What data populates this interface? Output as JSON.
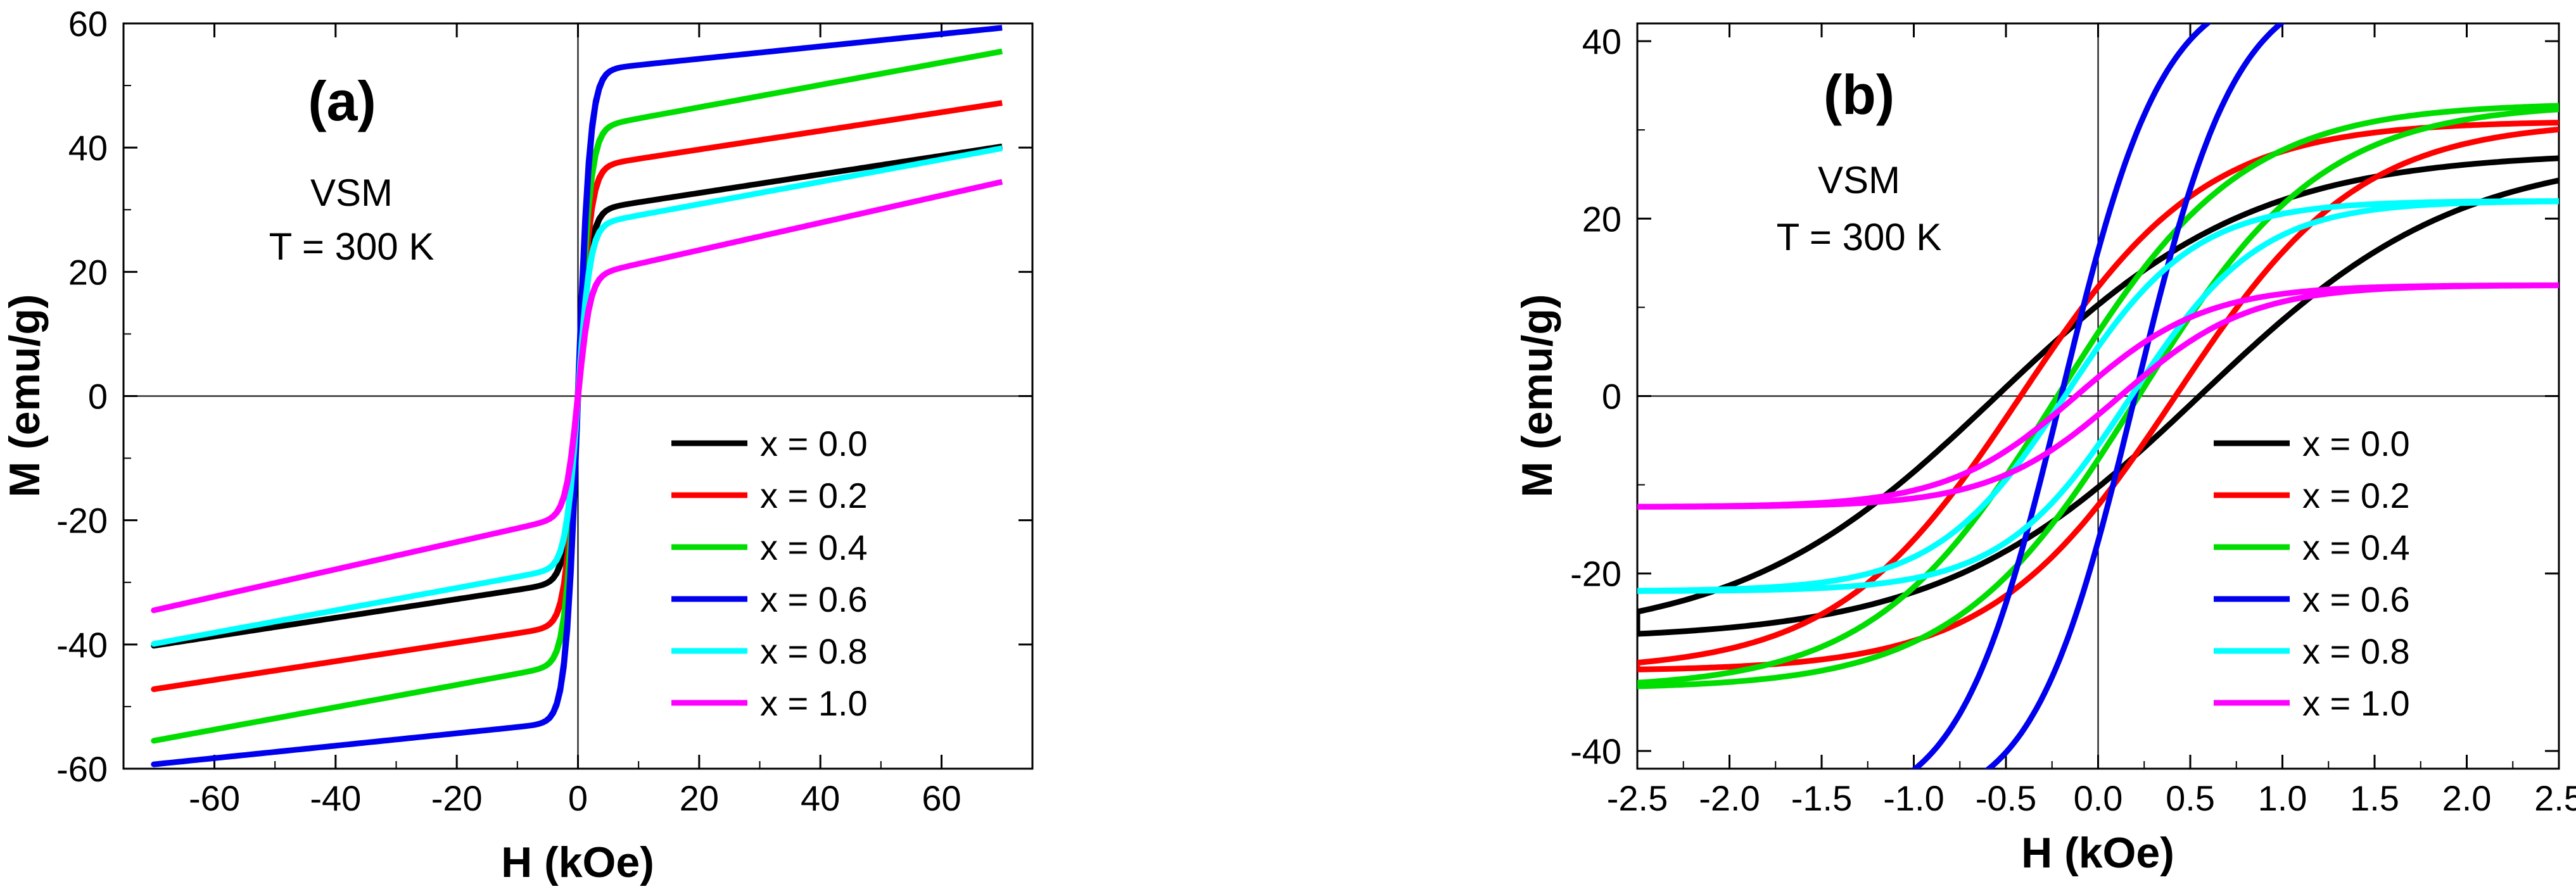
{
  "chart_data": [
    {
      "type": "line",
      "panel_label": "(a)",
      "annotations": [
        "VSM",
        "T = 300 K"
      ],
      "xlabel": "H (kOe)",
      "ylabel": "M (emu/g)",
      "xlim": [
        -75,
        75
      ],
      "ylim": [
        -60,
        60
      ],
      "xticks": [
        -60,
        -40,
        -20,
        0,
        20,
        40,
        60
      ],
      "xtick_labels": [
        "-60",
        "-40",
        "-20",
        "0",
        "20",
        "40",
        "60"
      ],
      "yticks": [
        -60,
        -40,
        -20,
        0,
        20,
        40,
        60
      ],
      "ytick_labels": [
        "-60",
        "-40",
        "-20",
        "0",
        "20",
        "40",
        "60"
      ],
      "legend_position": "lower-right",
      "series": [
        {
          "name": "x = 0.0",
          "color": "#000000",
          "Ms": 29.7,
          "Hc": 0.05,
          "a": 2.0,
          "b": 0.15,
          "xmax": 70
        },
        {
          "name": "x = 0.2",
          "color": "#ff0000",
          "Ms": 36.7,
          "Hc": 0.05,
          "a": 2.0,
          "b": 0.15,
          "xmax": 70
        },
        {
          "name": "x = 0.4",
          "color": "#00dd00",
          "Ms": 42.9,
          "Hc": 0.05,
          "a": 2.0,
          "b": 0.18,
          "xmax": 70
        },
        {
          "name": "x = 0.6",
          "color": "#0000ee",
          "Ms": 52.3,
          "Hc": 0.05,
          "a": 2.0,
          "b": 0.1,
          "xmax": 70
        },
        {
          "name": "x = 0.8",
          "color": "#00ffff",
          "Ms": 27.3,
          "Hc": 0.05,
          "a": 2.0,
          "b": 0.18,
          "xmax": 70
        },
        {
          "name": "x = 1.0",
          "color": "#ff00ff",
          "Ms": 19.1,
          "Hc": 0.05,
          "a": 2.0,
          "b": 0.22,
          "xmax": 70
        }
      ]
    },
    {
      "type": "line",
      "panel_label": "(b)",
      "annotations": [
        "VSM",
        "T = 300 K"
      ],
      "xlabel": "H (kOe)",
      "ylabel": "M (emu/g)",
      "xlim": [
        -2.5,
        2.5
      ],
      "ylim": [
        -42,
        42
      ],
      "xticks": [
        -2.5,
        -2.0,
        -1.5,
        -1.0,
        -0.5,
        0.0,
        0.5,
        1.0,
        1.5,
        2.0,
        2.5
      ],
      "xtick_labels": [
        "-2.5",
        "-2.0",
        "-1.5",
        "-1.0",
        "-0.5",
        "0.0",
        "0.5",
        "1.0",
        "1.5",
        "2.0",
        "2.5"
      ],
      "yticks": [
        -40,
        -20,
        0,
        20,
        40
      ],
      "ytick_labels": [
        "-40",
        "-20",
        "0",
        "20",
        "40"
      ],
      "legend_position": "lower-right",
      "series": [
        {
          "name": "x = 0.0",
          "color": "#000000",
          "Ms": 27.5,
          "Hc": 0.55,
          "a": 1.4,
          "b": 0.0,
          "xmax": 2.5
        },
        {
          "name": "x = 0.2",
          "color": "#ff0000",
          "Ms": 31.0,
          "Hc": 0.42,
          "a": 1.0,
          "b": 0.0,
          "xmax": 2.5
        },
        {
          "name": "x = 0.4",
          "color": "#00dd00",
          "Ms": 33.0,
          "Hc": 0.22,
          "a": 1.0,
          "b": 0.0,
          "xmax": 2.5
        },
        {
          "name": "x = 0.6",
          "color": "#0000ee",
          "Ms": 47.0,
          "Hc": 0.2,
          "a": 0.55,
          "b": 0.0,
          "xmax": 2.5
        },
        {
          "name": "x = 0.8",
          "color": "#00ffff",
          "Ms": 22.0,
          "Hc": 0.18,
          "a": 0.7,
          "b": 0.0,
          "xmax": 2.5
        },
        {
          "name": "x = 1.0",
          "color": "#ff00ff",
          "Ms": 12.5,
          "Hc": 0.12,
          "a": 0.7,
          "b": 0.0,
          "xmax": 2.5
        }
      ]
    }
  ]
}
